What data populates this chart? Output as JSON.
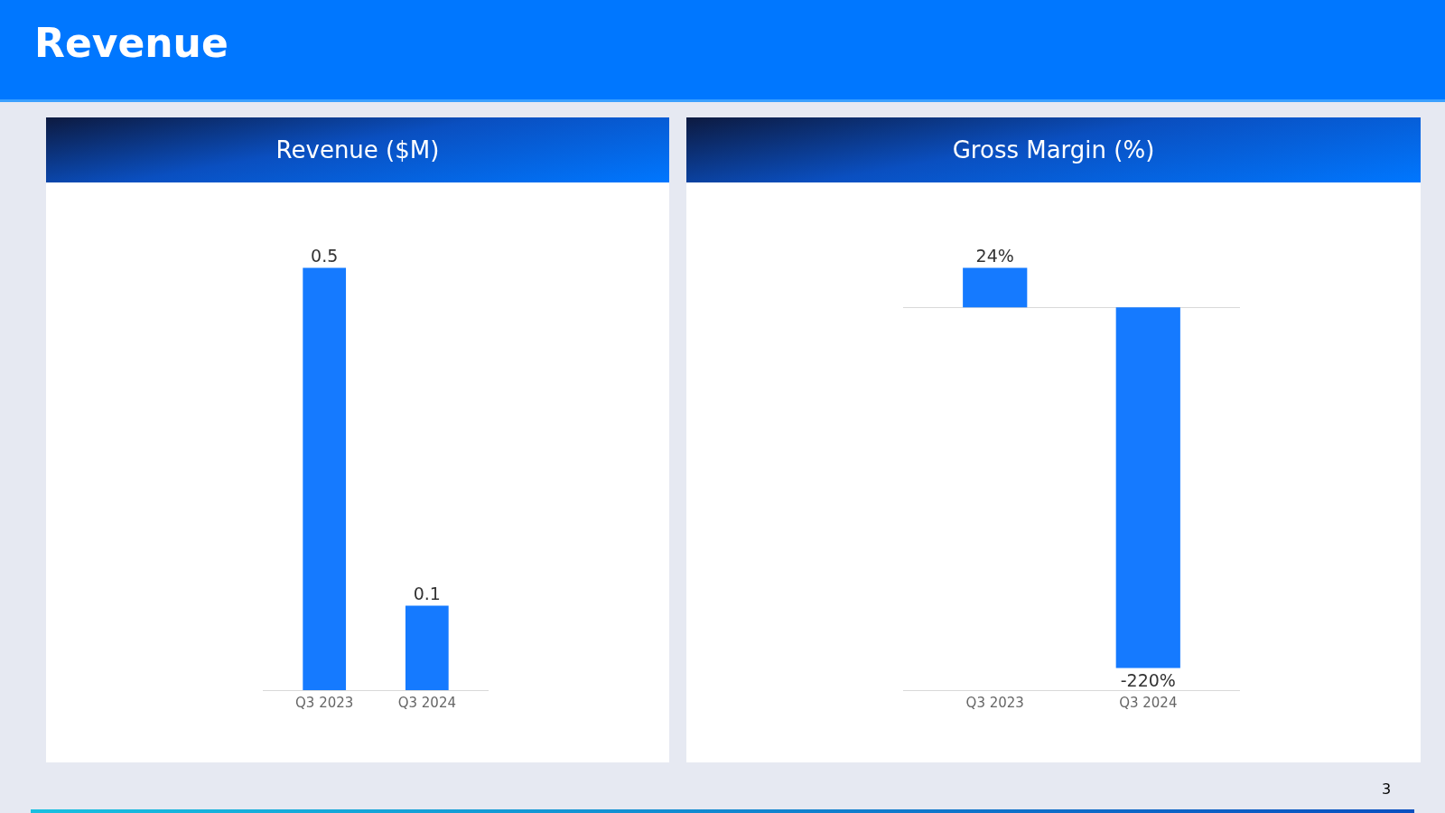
{
  "chart_data": [
    {
      "type": "bar",
      "title": "Revenue ($M)",
      "annotations": [
        "Revenue"
      ],
      "categories": [
        "Q3 2023",
        "Q3 2024"
      ],
      "values": [
        0.5,
        0.1
      ],
      "color": "#157aff",
      "data_labels": true,
      "grid": false,
      "legend": false
    },
    {
      "type": "bar",
      "title": "Gross Margin (%)",
      "annotations": [
        "3"
      ],
      "categories": [
        "Q3 2023",
        "Q3 2024"
      ],
      "values": [
        24,
        -220
      ],
      "value_labels": [
        "24%",
        "-220%"
      ],
      "color": "#157aff",
      "grid": false,
      "legend": false
    }
  ]
}
